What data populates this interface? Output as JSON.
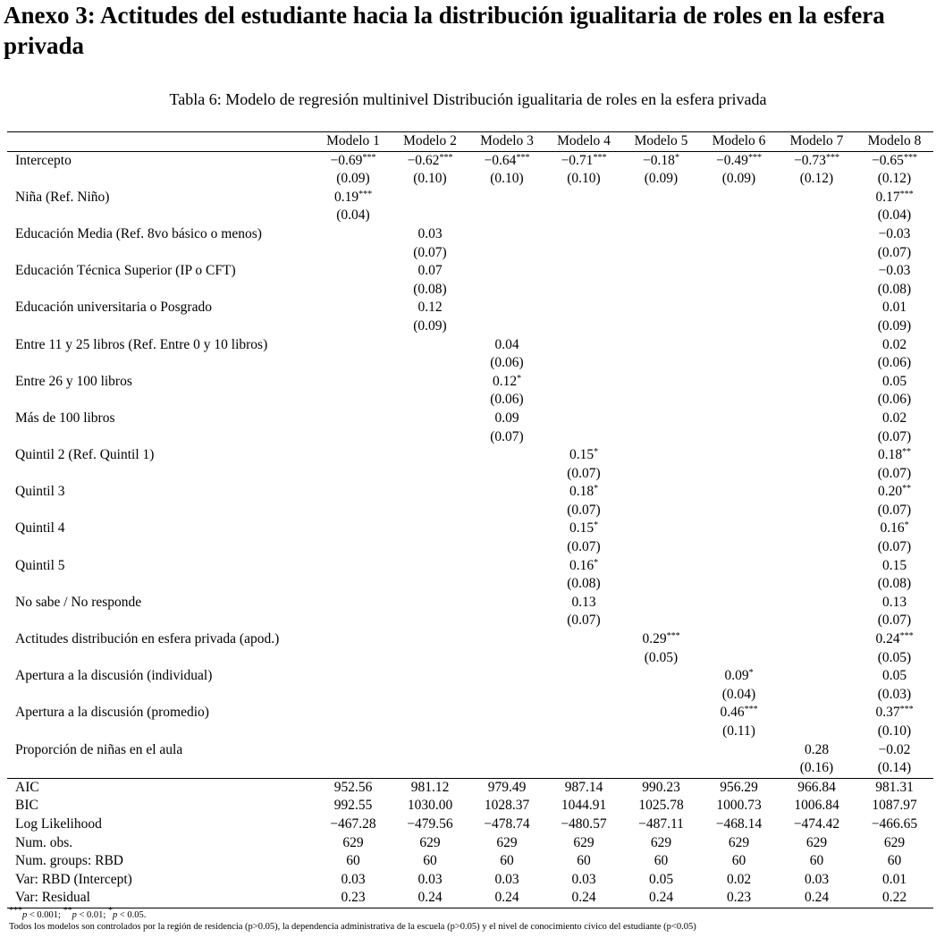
{
  "heading": "Anexo 3: Actitudes del estudiante hacia la distribución igualitaria de roles en la esfera privada",
  "caption": "Tabla 6: Modelo de regresión multinivel Distribución igualitaria de roles en la esfera privada",
  "columns": [
    "",
    "Modelo 1",
    "Modelo 2",
    "Modelo 3",
    "Modelo 4",
    "Modelo 5",
    "Modelo 6",
    "Modelo 7",
    "Modelo 8"
  ],
  "coefficients": [
    {
      "label": "Intercepto",
      "est": [
        [
          "−0.69",
          "***"
        ],
        [
          "−0.62",
          "***"
        ],
        [
          "−0.64",
          "***"
        ],
        [
          "−0.71",
          "***"
        ],
        [
          "−0.18",
          "*"
        ],
        [
          "−0.49",
          "***"
        ],
        [
          "−0.73",
          "***"
        ],
        [
          "−0.65",
          "***"
        ]
      ],
      "se": [
        "(0.09)",
        "(0.10)",
        "(0.10)",
        "(0.10)",
        "(0.09)",
        "(0.09)",
        "(0.12)",
        "(0.12)"
      ]
    },
    {
      "label": "Niña (Ref. Niño)",
      "est": [
        [
          "0.19",
          "***"
        ],
        [
          "",
          ""
        ],
        [
          "",
          ""
        ],
        [
          "",
          ""
        ],
        [
          "",
          ""
        ],
        [
          "",
          ""
        ],
        [
          "",
          ""
        ],
        [
          "0.17",
          "***"
        ]
      ],
      "se": [
        "(0.04)",
        "",
        "",
        "",
        "",
        "",
        "",
        "(0.04)"
      ]
    },
    {
      "label": "Educación Media (Ref. 8vo básico o menos)",
      "est": [
        [
          "",
          ""
        ],
        [
          "0.03",
          ""
        ],
        [
          "",
          ""
        ],
        [
          "",
          ""
        ],
        [
          "",
          ""
        ],
        [
          "",
          ""
        ],
        [
          "",
          ""
        ],
        [
          "−0.03",
          ""
        ]
      ],
      "se": [
        "",
        "(0.07)",
        "",
        "",
        "",
        "",
        "",
        "(0.07)"
      ]
    },
    {
      "label": "Educación Técnica Superior (IP o CFT)",
      "est": [
        [
          "",
          ""
        ],
        [
          "0.07",
          ""
        ],
        [
          "",
          ""
        ],
        [
          "",
          ""
        ],
        [
          "",
          ""
        ],
        [
          "",
          ""
        ],
        [
          "",
          ""
        ],
        [
          "−0.03",
          ""
        ]
      ],
      "se": [
        "",
        "(0.08)",
        "",
        "",
        "",
        "",
        "",
        "(0.08)"
      ]
    },
    {
      "label": "Educación universitaria o Posgrado",
      "est": [
        [
          "",
          ""
        ],
        [
          "0.12",
          ""
        ],
        [
          "",
          ""
        ],
        [
          "",
          ""
        ],
        [
          "",
          ""
        ],
        [
          "",
          ""
        ],
        [
          "",
          ""
        ],
        [
          "0.01",
          ""
        ]
      ],
      "se": [
        "",
        "(0.09)",
        "",
        "",
        "",
        "",
        "",
        "(0.09)"
      ]
    },
    {
      "label": "Entre 11 y 25 libros (Ref. Entre 0 y 10 libros)",
      "est": [
        [
          "",
          ""
        ],
        [
          "",
          ""
        ],
        [
          "0.04",
          ""
        ],
        [
          "",
          ""
        ],
        [
          "",
          ""
        ],
        [
          "",
          ""
        ],
        [
          "",
          ""
        ],
        [
          "0.02",
          ""
        ]
      ],
      "se": [
        "",
        "",
        "(0.06)",
        "",
        "",
        "",
        "",
        "(0.06)"
      ]
    },
    {
      "label": "Entre 26 y 100 libros",
      "est": [
        [
          "",
          ""
        ],
        [
          "",
          ""
        ],
        [
          "0.12",
          "*"
        ],
        [
          "",
          ""
        ],
        [
          "",
          ""
        ],
        [
          "",
          ""
        ],
        [
          "",
          ""
        ],
        [
          "0.05",
          ""
        ]
      ],
      "se": [
        "",
        "",
        "(0.06)",
        "",
        "",
        "",
        "",
        "(0.06)"
      ]
    },
    {
      "label": "Más de 100 libros",
      "est": [
        [
          "",
          ""
        ],
        [
          "",
          ""
        ],
        [
          "0.09",
          ""
        ],
        [
          "",
          ""
        ],
        [
          "",
          ""
        ],
        [
          "",
          ""
        ],
        [
          "",
          ""
        ],
        [
          "0.02",
          ""
        ]
      ],
      "se": [
        "",
        "",
        "(0.07)",
        "",
        "",
        "",
        "",
        "(0.07)"
      ]
    },
    {
      "label": "Quintil 2 (Ref. Quintil 1)",
      "est": [
        [
          "",
          ""
        ],
        [
          "",
          ""
        ],
        [
          "",
          ""
        ],
        [
          "0.15",
          "*"
        ],
        [
          "",
          ""
        ],
        [
          "",
          ""
        ],
        [
          "",
          ""
        ],
        [
          "0.18",
          "**"
        ]
      ],
      "se": [
        "",
        "",
        "",
        "(0.07)",
        "",
        "",
        "",
        "(0.07)"
      ]
    },
    {
      "label": "Quintil 3",
      "est": [
        [
          "",
          ""
        ],
        [
          "",
          ""
        ],
        [
          "",
          ""
        ],
        [
          "0.18",
          "*"
        ],
        [
          "",
          ""
        ],
        [
          "",
          ""
        ],
        [
          "",
          ""
        ],
        [
          "0.20",
          "**"
        ]
      ],
      "se": [
        "",
        "",
        "",
        "(0.07)",
        "",
        "",
        "",
        "(0.07)"
      ]
    },
    {
      "label": "Quintil 4",
      "est": [
        [
          "",
          ""
        ],
        [
          "",
          ""
        ],
        [
          "",
          ""
        ],
        [
          "0.15",
          "*"
        ],
        [
          "",
          ""
        ],
        [
          "",
          ""
        ],
        [
          "",
          ""
        ],
        [
          "0.16",
          "*"
        ]
      ],
      "se": [
        "",
        "",
        "",
        "(0.07)",
        "",
        "",
        "",
        "(0.07)"
      ]
    },
    {
      "label": "Quintil 5",
      "est": [
        [
          "",
          ""
        ],
        [
          "",
          ""
        ],
        [
          "",
          ""
        ],
        [
          "0.16",
          "*"
        ],
        [
          "",
          ""
        ],
        [
          "",
          ""
        ],
        [
          "",
          ""
        ],
        [
          "0.15",
          ""
        ]
      ],
      "se": [
        "",
        "",
        "",
        "(0.08)",
        "",
        "",
        "",
        "(0.08)"
      ]
    },
    {
      "label": "No sabe / No responde",
      "est": [
        [
          "",
          ""
        ],
        [
          "",
          ""
        ],
        [
          "",
          ""
        ],
        [
          "0.13",
          ""
        ],
        [
          "",
          ""
        ],
        [
          "",
          ""
        ],
        [
          "",
          ""
        ],
        [
          "0.13",
          ""
        ]
      ],
      "se": [
        "",
        "",
        "",
        "(0.07)",
        "",
        "",
        "",
        "(0.07)"
      ]
    },
    {
      "label": "Actitudes distribución en esfera privada (apod.)",
      "est": [
        [
          "",
          ""
        ],
        [
          "",
          ""
        ],
        [
          "",
          ""
        ],
        [
          "",
          ""
        ],
        [
          "0.29",
          "***"
        ],
        [
          "",
          ""
        ],
        [
          "",
          ""
        ],
        [
          "0.24",
          "***"
        ]
      ],
      "se": [
        "",
        "",
        "",
        "",
        "(0.05)",
        "",
        "",
        "(0.05)"
      ]
    },
    {
      "label": "Apertura a la discusión (individual)",
      "est": [
        [
          "",
          ""
        ],
        [
          "",
          ""
        ],
        [
          "",
          ""
        ],
        [
          "",
          ""
        ],
        [
          "",
          ""
        ],
        [
          "0.09",
          "*"
        ],
        [
          "",
          ""
        ],
        [
          "0.05",
          ""
        ]
      ],
      "se": [
        "",
        "",
        "",
        "",
        "",
        "(0.04)",
        "",
        "(0.03)"
      ]
    },
    {
      "label": "Apertura a la discusión (promedio)",
      "est": [
        [
          "",
          ""
        ],
        [
          "",
          ""
        ],
        [
          "",
          ""
        ],
        [
          "",
          ""
        ],
        [
          "",
          ""
        ],
        [
          "0.46",
          "***"
        ],
        [
          "",
          ""
        ],
        [
          "0.37",
          "***"
        ]
      ],
      "se": [
        "",
        "",
        "",
        "",
        "",
        "(0.11)",
        "",
        "(0.10)"
      ]
    },
    {
      "label": "Proporción de niñas en el aula",
      "est": [
        [
          "",
          ""
        ],
        [
          "",
          ""
        ],
        [
          "",
          ""
        ],
        [
          "",
          ""
        ],
        [
          "",
          ""
        ],
        [
          "",
          ""
        ],
        [
          "0.28",
          ""
        ],
        [
          "−0.02",
          ""
        ]
      ],
      "se": [
        "",
        "",
        "",
        "",
        "",
        "",
        "(0.16)",
        "(0.14)"
      ]
    }
  ],
  "gof": [
    {
      "label": "AIC",
      "values": [
        "952.56",
        "981.12",
        "979.49",
        "987.14",
        "990.23",
        "956.29",
        "966.84",
        "981.31"
      ]
    },
    {
      "label": "BIC",
      "values": [
        "992.55",
        "1030.00",
        "1028.37",
        "1044.91",
        "1025.78",
        "1000.73",
        "1006.84",
        "1087.97"
      ]
    },
    {
      "label": "Log Likelihood",
      "values": [
        "−467.28",
        "−479.56",
        "−478.74",
        "−480.57",
        "−487.11",
        "−468.14",
        "−474.42",
        "−466.65"
      ]
    },
    {
      "label": "Num. obs.",
      "values": [
        "629",
        "629",
        "629",
        "629",
        "629",
        "629",
        "629",
        "629"
      ]
    },
    {
      "label": "Num. groups: RBD",
      "values": [
        "60",
        "60",
        "60",
        "60",
        "60",
        "60",
        "60",
        "60"
      ]
    },
    {
      "label": "Var: RBD (Intercept)",
      "values": [
        "0.03",
        "0.03",
        "0.03",
        "0.03",
        "0.05",
        "0.02",
        "0.03",
        "0.01"
      ]
    },
    {
      "label": "Var: Residual",
      "values": [
        "0.23",
        "0.24",
        "0.24",
        "0.24",
        "0.24",
        "0.23",
        "0.24",
        "0.22"
      ]
    }
  ],
  "notes": {
    "significance": "***p < 0.001; **p < 0.01; *p < 0.05.",
    "controls": "Todos los modelos son controlados por la región de residencia (p>0.05), la dependencia administrativa de la escuela (p>0.05) y el nivel de conocimiento cívico del estudiante (p<0.05)"
  }
}
